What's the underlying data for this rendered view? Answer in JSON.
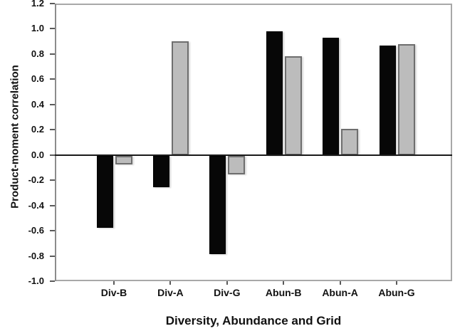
{
  "chart_data": {
    "type": "bar",
    "title": "",
    "xlabel": "Diversity, Abundance and Grid",
    "ylabel": "Product-moment correlation",
    "categories": [
      "Div-B",
      "Div-A",
      "Div-G",
      "Abun-B",
      "Abun-A",
      "Abun-G"
    ],
    "series": [
      {
        "name": "black-bars",
        "color": "#070707",
        "border_color": "#000000",
        "values": [
          -0.57,
          -0.25,
          -0.78,
          0.98,
          0.93,
          0.87
        ]
      },
      {
        "name": "gray-bars",
        "color": "#bcbcbc",
        "border_color": "#6e6e6e",
        "values": [
          -0.07,
          0.9,
          -0.15,
          0.78,
          0.21,
          0.88
        ]
      }
    ],
    "ylim": [
      -1.0,
      1.2
    ],
    "ytick_step": 0.2,
    "yticks": [
      "1.2",
      "1.0",
      "0.8",
      "0.6",
      "0.4",
      "0.2",
      "0.0",
      "-0.2",
      "-0.4",
      "-0.6",
      "-0.8",
      "-1.0"
    ],
    "grid": false,
    "legend": "none",
    "axis_color": "#8c8c8c",
    "frame_color": "#a8a8a8",
    "zero_line_color": "#1a1a1a"
  }
}
